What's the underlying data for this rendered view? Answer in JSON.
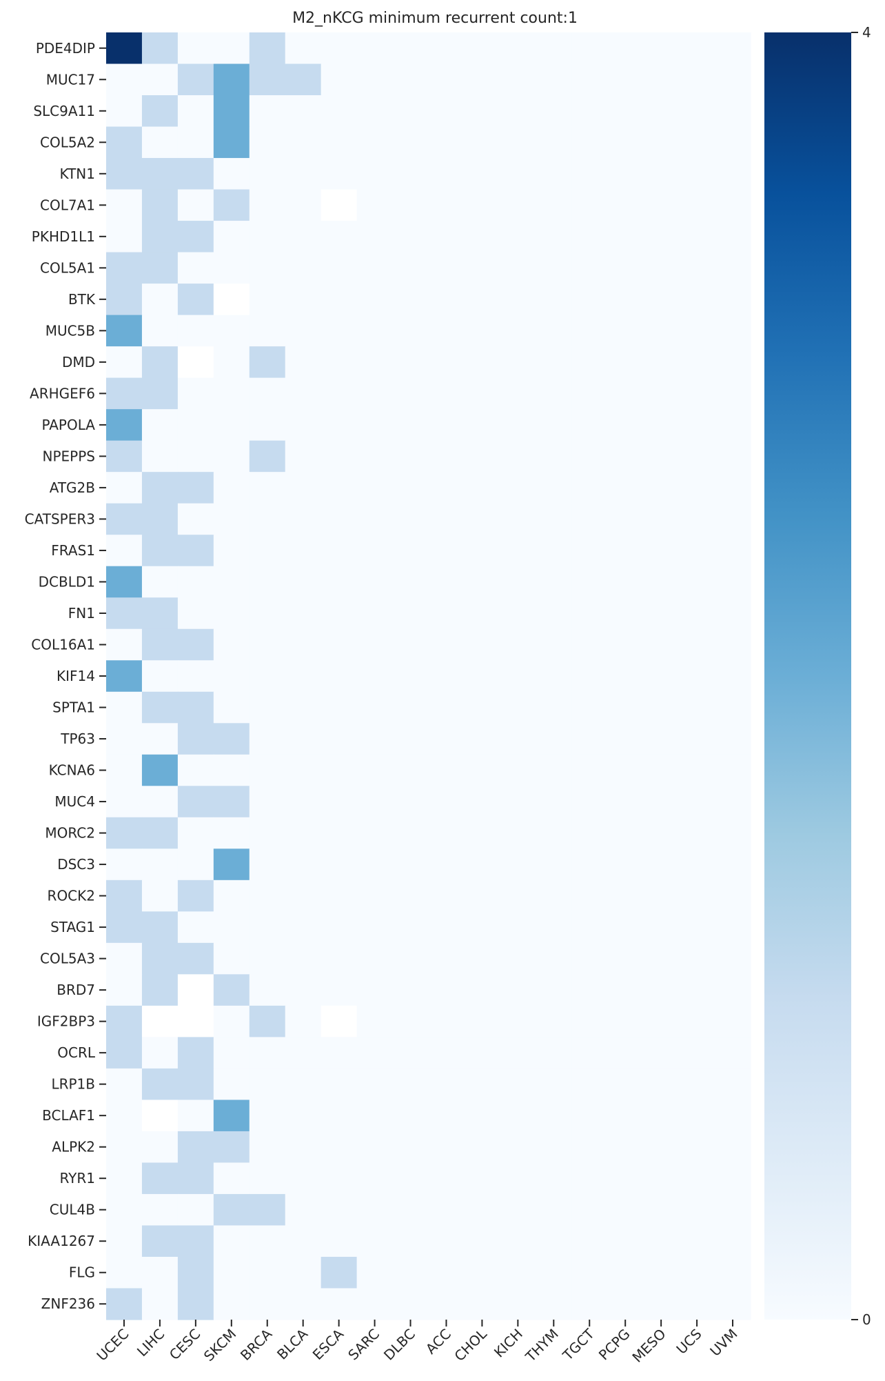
{
  "chart_data": {
    "type": "heatmap",
    "title": "M2_nKCG minimum recurrent count:1",
    "xlabel": "",
    "ylabel": "",
    "x_categories": [
      "UCEC",
      "LIHC",
      "CESC",
      "SKCM",
      "BRCA",
      "BLCA",
      "ESCA",
      "SARC",
      "DLBC",
      "ACC",
      "CHOL",
      "KICH",
      "THYM",
      "TGCT",
      "PCPG",
      "MESO",
      "UCS",
      "UVM"
    ],
    "y_categories": [
      "PDE4DIP",
      "MUC17",
      "SLC9A11",
      "COL5A2",
      "KTN1",
      "COL7A1",
      "PKHD1L1",
      "COL5A1",
      "BTK",
      "MUC5B",
      "DMD",
      "ARHGEF6",
      "PAPOLA",
      "NPEPPS",
      "ATG2B",
      "CATSPER3",
      "FRAS1",
      "DCBLD1",
      "FN1",
      "COL16A1",
      "KIF14",
      "SPTA1",
      "TP63",
      "KCNA6",
      "MUC4",
      "MORC2",
      "DSC3",
      "ROCK2",
      "STAG1",
      "COL5A3",
      "BRD7",
      "IGF2BP3",
      "OCRL",
      "LRP1B",
      "BCLAF1",
      "ALPK2",
      "RYR1",
      "CUL4B",
      "KIAA1267",
      "FLG",
      "ZNF236"
    ],
    "values": [
      [
        4,
        1,
        0,
        0,
        1,
        0,
        0,
        0,
        0,
        0,
        0,
        0,
        0,
        0,
        0,
        0,
        0,
        0
      ],
      [
        0,
        0,
        1,
        2,
        1,
        1,
        0,
        0,
        0,
        0,
        0,
        0,
        0,
        0,
        0,
        0,
        0,
        0
      ],
      [
        0,
        1,
        0,
        2,
        0,
        0,
        0,
        0,
        0,
        0,
        0,
        0,
        0,
        0,
        0,
        0,
        0,
        0
      ],
      [
        1,
        0,
        0,
        2,
        0,
        0,
        0,
        0,
        0,
        0,
        0,
        0,
        0,
        0,
        0,
        0,
        0,
        0
      ],
      [
        1,
        1,
        1,
        0,
        0,
        0,
        0,
        0,
        0,
        0,
        0,
        0,
        0,
        0,
        0,
        0,
        0,
        0
      ],
      [
        0,
        1,
        0,
        1,
        0,
        0,
        0,
        0,
        0,
        0,
        0,
        0,
        0,
        0,
        0,
        0,
        0,
        0
      ],
      [
        0,
        1,
        1,
        0,
        0,
        0,
        0,
        0,
        0,
        0,
        0,
        0,
        0,
        0,
        0,
        0,
        0,
        0
      ],
      [
        1,
        1,
        0,
        0,
        0,
        0,
        0,
        0,
        0,
        0,
        0,
        0,
        0,
        0,
        0,
        0,
        0,
        0
      ],
      [
        1,
        0,
        1,
        0,
        0,
        0,
        0,
        0,
        0,
        0,
        0,
        0,
        0,
        0,
        0,
        0,
        0,
        0
      ],
      [
        2,
        0,
        0,
        0,
        0,
        0,
        0,
        0,
        0,
        0,
        0,
        0,
        0,
        0,
        0,
        0,
        0,
        0
      ],
      [
        0,
        1,
        0,
        0,
        1,
        0,
        0,
        0,
        0,
        0,
        0,
        0,
        0,
        0,
        0,
        0,
        0,
        0
      ],
      [
        1,
        1,
        0,
        0,
        0,
        0,
        0,
        0,
        0,
        0,
        0,
        0,
        0,
        0,
        0,
        0,
        0,
        0
      ],
      [
        2,
        0,
        0,
        0,
        0,
        0,
        0,
        0,
        0,
        0,
        0,
        0,
        0,
        0,
        0,
        0,
        0,
        0
      ],
      [
        1,
        0,
        0,
        0,
        1,
        0,
        0,
        0,
        0,
        0,
        0,
        0,
        0,
        0,
        0,
        0,
        0,
        0
      ],
      [
        0,
        1,
        1,
        0,
        0,
        0,
        0,
        0,
        0,
        0,
        0,
        0,
        0,
        0,
        0,
        0,
        0,
        0
      ],
      [
        1,
        1,
        0,
        0,
        0,
        0,
        0,
        0,
        0,
        0,
        0,
        0,
        0,
        0,
        0,
        0,
        0,
        0
      ],
      [
        0,
        1,
        1,
        0,
        0,
        0,
        0,
        0,
        0,
        0,
        0,
        0,
        0,
        0,
        0,
        0,
        0,
        0
      ],
      [
        2,
        0,
        0,
        0,
        0,
        0,
        0,
        0,
        0,
        0,
        0,
        0,
        0,
        0,
        0,
        0,
        0,
        0
      ],
      [
        1,
        1,
        0,
        0,
        0,
        0,
        0,
        0,
        0,
        0,
        0,
        0,
        0,
        0,
        0,
        0,
        0,
        0
      ],
      [
        0,
        1,
        1,
        0,
        0,
        0,
        0,
        0,
        0,
        0,
        0,
        0,
        0,
        0,
        0,
        0,
        0,
        0
      ],
      [
        2,
        0,
        0,
        0,
        0,
        0,
        0,
        0,
        0,
        0,
        0,
        0,
        0,
        0,
        0,
        0,
        0,
        0
      ],
      [
        0,
        1,
        1,
        0,
        0,
        0,
        0,
        0,
        0,
        0,
        0,
        0,
        0,
        0,
        0,
        0,
        0,
        0
      ],
      [
        0,
        0,
        1,
        1,
        0,
        0,
        0,
        0,
        0,
        0,
        0,
        0,
        0,
        0,
        0,
        0,
        0,
        0
      ],
      [
        0,
        2,
        0,
        0,
        0,
        0,
        0,
        0,
        0,
        0,
        0,
        0,
        0,
        0,
        0,
        0,
        0,
        0
      ],
      [
        0,
        0,
        1,
        1,
        0,
        0,
        0,
        0,
        0,
        0,
        0,
        0,
        0,
        0,
        0,
        0,
        0,
        0
      ],
      [
        1,
        1,
        0,
        0,
        0,
        0,
        0,
        0,
        0,
        0,
        0,
        0,
        0,
        0,
        0,
        0,
        0,
        0
      ],
      [
        0,
        0,
        0,
        2,
        0,
        0,
        0,
        0,
        0,
        0,
        0,
        0,
        0,
        0,
        0,
        0,
        0,
        0
      ],
      [
        1,
        0,
        1,
        0,
        0,
        0,
        0,
        0,
        0,
        0,
        0,
        0,
        0,
        0,
        0,
        0,
        0,
        0
      ],
      [
        1,
        1,
        0,
        0,
        0,
        0,
        0,
        0,
        0,
        0,
        0,
        0,
        0,
        0,
        0,
        0,
        0,
        0
      ],
      [
        0,
        1,
        1,
        0,
        0,
        0,
        0,
        0,
        0,
        0,
        0,
        0,
        0,
        0,
        0,
        0,
        0,
        0
      ],
      [
        0,
        1,
        0,
        1,
        0,
        0,
        0,
        0,
        0,
        0,
        0,
        0,
        0,
        0,
        0,
        0,
        0,
        0
      ],
      [
        1,
        0,
        0,
        0,
        1,
        0,
        0,
        0,
        0,
        0,
        0,
        0,
        0,
        0,
        0,
        0,
        0,
        0
      ],
      [
        1,
        0,
        1,
        0,
        0,
        0,
        0,
        0,
        0,
        0,
        0,
        0,
        0,
        0,
        0,
        0,
        0,
        0
      ],
      [
        0,
        1,
        1,
        0,
        0,
        0,
        0,
        0,
        0,
        0,
        0,
        0,
        0,
        0,
        0,
        0,
        0,
        0
      ],
      [
        0,
        0,
        0,
        2,
        0,
        0,
        0,
        0,
        0,
        0,
        0,
        0,
        0,
        0,
        0,
        0,
        0,
        0
      ],
      [
        0,
        0,
        1,
        1,
        0,
        0,
        0,
        0,
        0,
        0,
        0,
        0,
        0,
        0,
        0,
        0,
        0,
        0
      ],
      [
        0,
        1,
        1,
        0,
        0,
        0,
        0,
        0,
        0,
        0,
        0,
        0,
        0,
        0,
        0,
        0,
        0,
        0
      ],
      [
        0,
        0,
        0,
        1,
        1,
        0,
        0,
        0,
        0,
        0,
        0,
        0,
        0,
        0,
        0,
        0,
        0,
        0
      ],
      [
        0,
        1,
        1,
        0,
        0,
        0,
        0,
        0,
        0,
        0,
        0,
        0,
        0,
        0,
        0,
        0,
        0,
        0
      ],
      [
        0,
        0,
        1,
        0,
        0,
        0,
        1,
        0,
        0,
        0,
        0,
        0,
        0,
        0,
        0,
        0,
        0,
        0
      ],
      [
        1,
        0,
        1,
        0,
        0,
        0,
        0,
        0,
        0,
        0,
        0,
        0,
        0,
        0,
        0,
        0,
        0,
        0
      ]
    ],
    "missing_cells": [
      [
        5,
        6
      ],
      [
        8,
        3
      ],
      [
        10,
        2
      ],
      [
        30,
        2
      ],
      [
        31,
        1
      ],
      [
        31,
        2
      ],
      [
        31,
        6
      ],
      [
        34,
        1
      ]
    ],
    "colorbar": {
      "colormap": "Blues",
      "vmin": 0,
      "vmax": 4,
      "ticks": [
        "0",
        "4"
      ],
      "color_stops": [
        "#f7fbff",
        "#deebf7",
        "#c6dbef",
        "#9ecae1",
        "#6baed6",
        "#4292c6",
        "#2171b5",
        "#08519c",
        "#08306b"
      ]
    },
    "missing_color": "#ffffff"
  }
}
